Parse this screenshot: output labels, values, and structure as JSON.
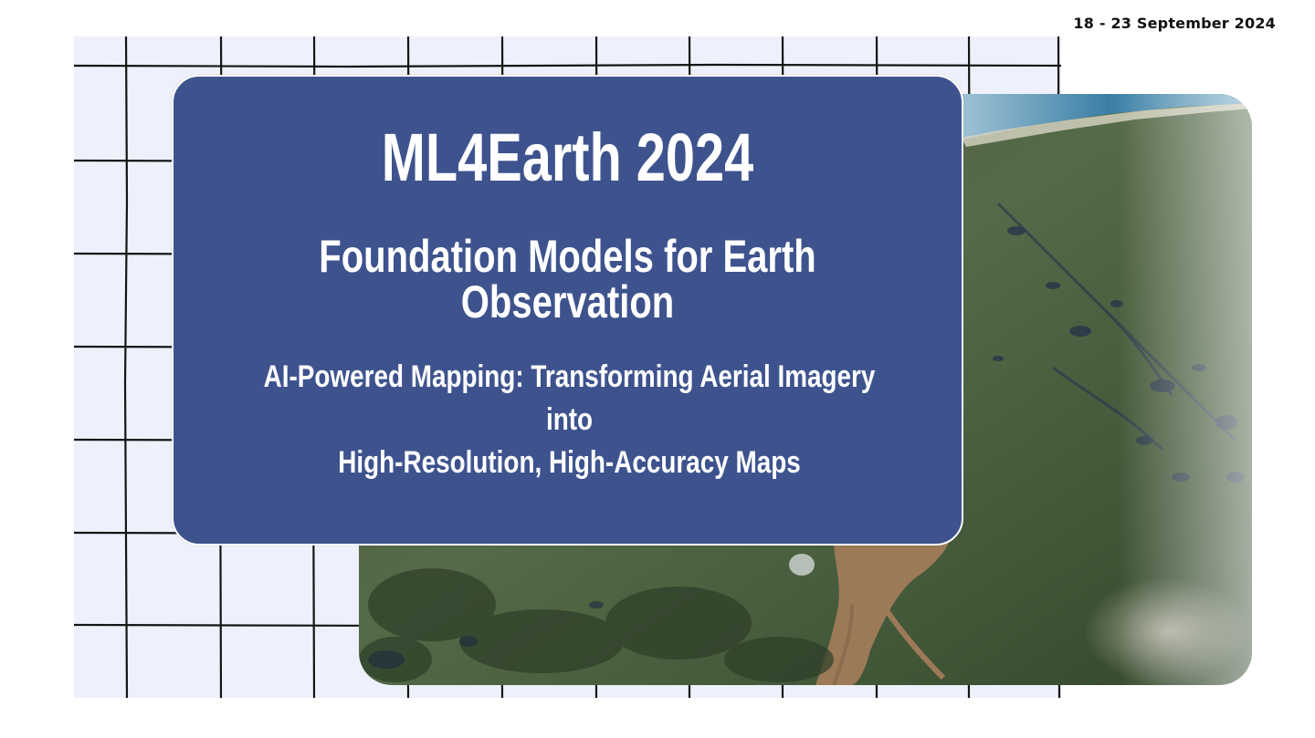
{
  "event": {
    "date": "18 - 23 September 2024",
    "title": "ML4Earth 2024",
    "subtitle": "Foundation Models for Earth Observation"
  },
  "talk": {
    "title_line1": "AI-Powered Mapping: Transforming Aerial Imagery into",
    "title_line2": "High-Resolution, High-Accuracy Maps"
  },
  "colors": {
    "card_background": "#3e538e",
    "grid_background": "#eef1fb",
    "grid_lines": "#111111",
    "text": "#ffffff"
  }
}
